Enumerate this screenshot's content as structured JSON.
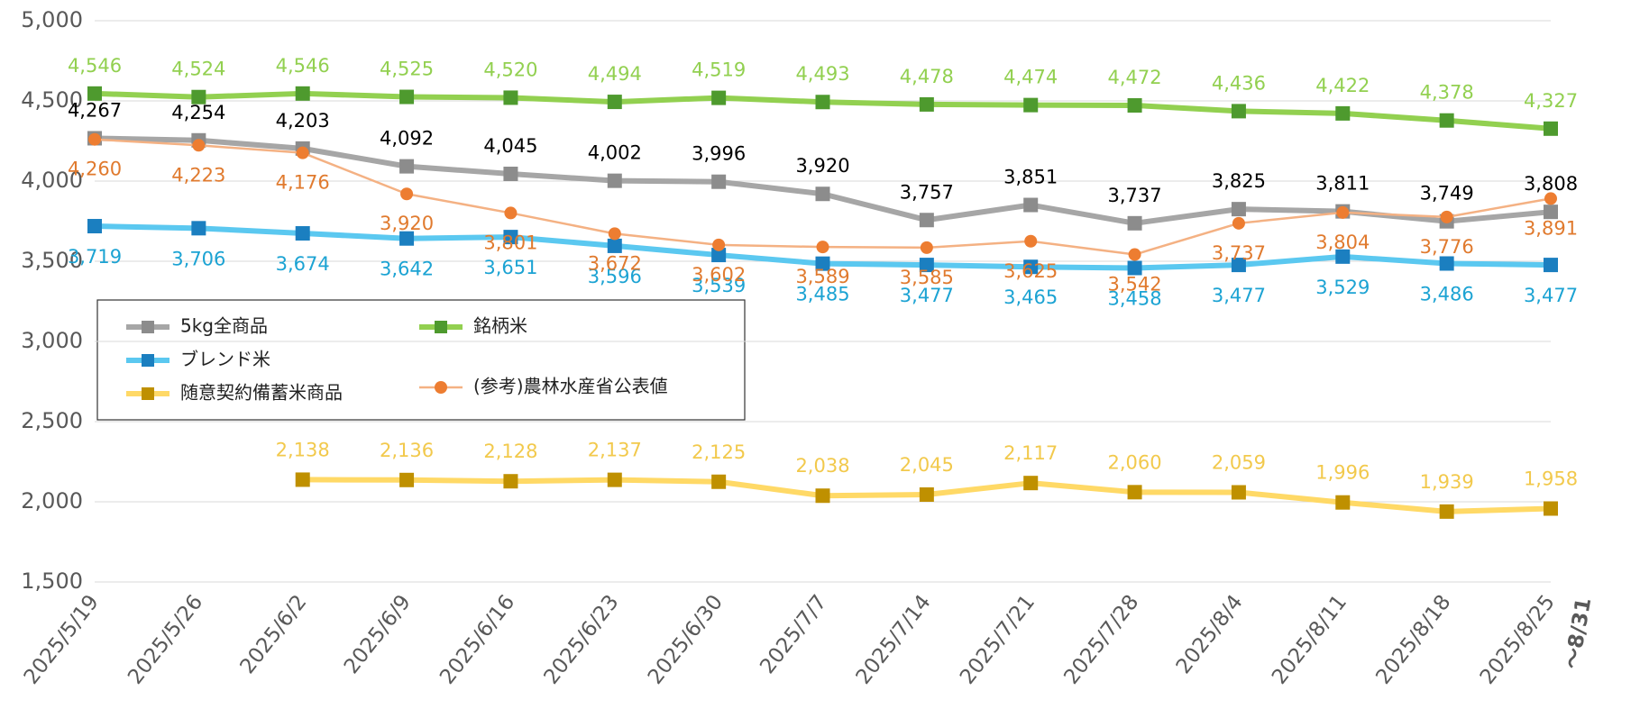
{
  "chart_data": {
    "type": "line",
    "categories": [
      "2025/5/19",
      "2025/5/26",
      "2025/6/2",
      "2025/6/9",
      "2025/6/16",
      "2025/6/23",
      "2025/6/30",
      "2025/7/7",
      "2025/7/14",
      "2025/7/21",
      "2025/7/28",
      "2025/8/4",
      "2025/8/11",
      "2025/8/18",
      "2025/8/25"
    ],
    "annotation": "～8/31",
    "ylim": [
      1500,
      5000
    ],
    "yticks": [
      {
        "value": 1500,
        "label": "1,500"
      },
      {
        "value": 2000,
        "label": "2,000"
      },
      {
        "value": 2500,
        "label": "2,500"
      },
      {
        "value": 3000,
        "label": "3,000"
      },
      {
        "value": 3500,
        "label": "3,500"
      },
      {
        "value": 4000,
        "label": "4,000"
      },
      {
        "value": 4500,
        "label": "4,500"
      },
      {
        "value": 5000,
        "label": "5,000"
      }
    ],
    "grid": true,
    "series": [
      {
        "name": "5kg全商品",
        "color": "#a6a6a6",
        "marker_color": "#8c8c8c",
        "label_color": "#000000",
        "marker": "square",
        "values": [
          4267,
          4254,
          4203,
          4092,
          4045,
          4002,
          3996,
          3920,
          3757,
          3851,
          3737,
          3825,
          3811,
          3749,
          3808
        ],
        "value_labels": [
          "4,267",
          "4,254",
          "4,203",
          "4,092",
          "4,045",
          "4,002",
          "3,996",
          "3,920",
          "3,757",
          "3,851",
          "3,737",
          "3,825",
          "3,811",
          "3,749",
          "3,808"
        ]
      },
      {
        "name": "ブレンド米",
        "color": "#5bc8f0",
        "marker_color": "#1b7fc0",
        "label_color": "#1ca3d3",
        "marker": "square",
        "values": [
          3719,
          3706,
          3674,
          3642,
          3651,
          3596,
          3539,
          3485,
          3477,
          3465,
          3458,
          3477,
          3529,
          3486,
          3477
        ],
        "value_labels": [
          "3,719",
          "3,706",
          "3,674",
          "3,642",
          "3,651",
          "3,596",
          "3,539",
          "3,485",
          "3,477",
          "3,465",
          "3,458",
          "3,477",
          "3,529",
          "3,486",
          "3,477"
        ]
      },
      {
        "name": "随意契約備蓄米商品",
        "color": "#ffd966",
        "marker_color": "#bf9000",
        "label_color": "#f2c94c",
        "marker": "square",
        "values": [
          null,
          null,
          2138,
          2136,
          2128,
          2137,
          2125,
          2038,
          2045,
          2117,
          2060,
          2059,
          1996,
          1939,
          1958
        ],
        "value_labels": [
          null,
          null,
          "2,138",
          "2,136",
          "2,128",
          "2,137",
          "2,125",
          "2,038",
          "2,045",
          "2,117",
          "2,060",
          "2,059",
          "1,996",
          "1,939",
          "1,958"
        ]
      },
      {
        "name": "銘柄米",
        "color": "#92d050",
        "marker_color": "#4e9a2e",
        "label_color": "#92d050",
        "marker": "square",
        "values": [
          4546,
          4524,
          4546,
          4525,
          4520,
          4494,
          4519,
          4493,
          4478,
          4474,
          4472,
          4436,
          4422,
          4378,
          4327
        ],
        "value_labels": [
          "4,546",
          "4,524",
          "4,546",
          "4,525",
          "4,520",
          "4,494",
          "4,519",
          "4,493",
          "4,478",
          "4,474",
          "4,472",
          "4,436",
          "4,422",
          "4,378",
          "4,327"
        ]
      },
      {
        "name": "(参考)農林水産省公表値",
        "color": "#f4b183",
        "marker_color": "#ed7d31",
        "label_color": "#e07a2e",
        "marker": "circle",
        "values": [
          4260,
          4223,
          4176,
          3920,
          3801,
          3672,
          3602,
          3589,
          3585,
          3625,
          3542,
          3737,
          3804,
          3776,
          3891
        ],
        "value_labels": [
          "4,260",
          "4,223",
          "4,176",
          "3,920",
          "3,801",
          "3,672",
          "3,602",
          "3,589",
          "3,585",
          "3,625",
          "3,542",
          "3,737",
          "3,804",
          "3,776",
          "3,891"
        ]
      }
    ]
  }
}
